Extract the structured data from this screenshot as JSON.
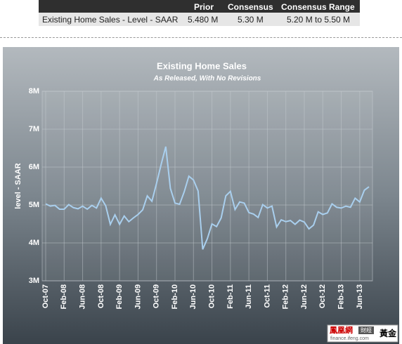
{
  "table": {
    "header": [
      "Prior",
      "Consensus",
      "Consensus Range"
    ],
    "rows": [
      [
        "Existing Home Sales - Level - SAAR",
        "5.480 M",
        "5.30 M",
        "5.20 M to 5.50 M"
      ]
    ]
  },
  "chart_data": {
    "type": "line",
    "title": "Existing Home Sales",
    "subtitle": "As Released, With No Revisions",
    "y_label": "level - SAAR",
    "categories": [
      "Oct-07",
      null,
      null,
      null,
      "Feb-08",
      null,
      null,
      null,
      "Jun-08",
      null,
      null,
      null,
      "Oct-08",
      null,
      null,
      null,
      "Feb-09",
      null,
      null,
      null,
      "Jun-09",
      null,
      null,
      null,
      "Oct-09",
      null,
      null,
      null,
      "Feb-10",
      null,
      null,
      null,
      "Jun-10",
      null,
      null,
      null,
      "Oct-10",
      null,
      null,
      null,
      "Feb-11",
      null,
      null,
      null,
      "Jun-11",
      null,
      null,
      null,
      "Oct-11",
      null,
      null,
      null,
      "Feb-12",
      null,
      null,
      null,
      "Jun-12",
      null,
      null,
      null,
      "Oct-12",
      null,
      null,
      null,
      "Feb-13",
      null,
      null,
      null,
      "Jun-13",
      null,
      null
    ],
    "series": [
      {
        "name": "Existing Home Sales",
        "color": "#a9cfee",
        "values": [
          5.03,
          4.97,
          4.99,
          4.89,
          4.89,
          5.01,
          4.93,
          4.9,
          4.97,
          4.89,
          4.99,
          4.92,
          5.18,
          4.98,
          4.49,
          4.74,
          4.49,
          4.71,
          4.56,
          4.66,
          4.75,
          4.87,
          5.24,
          5.1,
          5.57,
          6.07,
          6.54,
          5.44,
          5.05,
          5.02,
          5.35,
          5.76,
          5.66,
          5.37,
          3.83,
          4.11,
          4.5,
          4.43,
          4.66,
          5.24,
          5.36,
          4.88,
          5.08,
          5.05,
          4.8,
          4.76,
          4.67,
          5.01,
          4.92,
          4.97,
          4.42,
          4.61,
          4.56,
          4.59,
          4.49,
          4.6,
          4.55,
          4.37,
          4.47,
          4.82,
          4.75,
          4.79,
          5.03,
          4.94,
          4.92,
          4.97,
          4.94,
          5.18,
          5.08,
          5.39,
          5.48
        ]
      }
    ],
    "ylim": [
      3,
      8
    ],
    "yticks": [
      {
        "value": 3,
        "label": "3M"
      },
      {
        "value": 4,
        "label": "4M"
      },
      {
        "value": 5,
        "label": "5M"
      },
      {
        "value": 6,
        "label": "6M"
      },
      {
        "value": 7,
        "label": "7M"
      },
      {
        "value": 8,
        "label": "8M"
      }
    ],
    "grid": true
  },
  "logo": {
    "name": "鳳凰網",
    "tag": "財經",
    "section": "黃金",
    "url": "finance.ifeng.com"
  }
}
